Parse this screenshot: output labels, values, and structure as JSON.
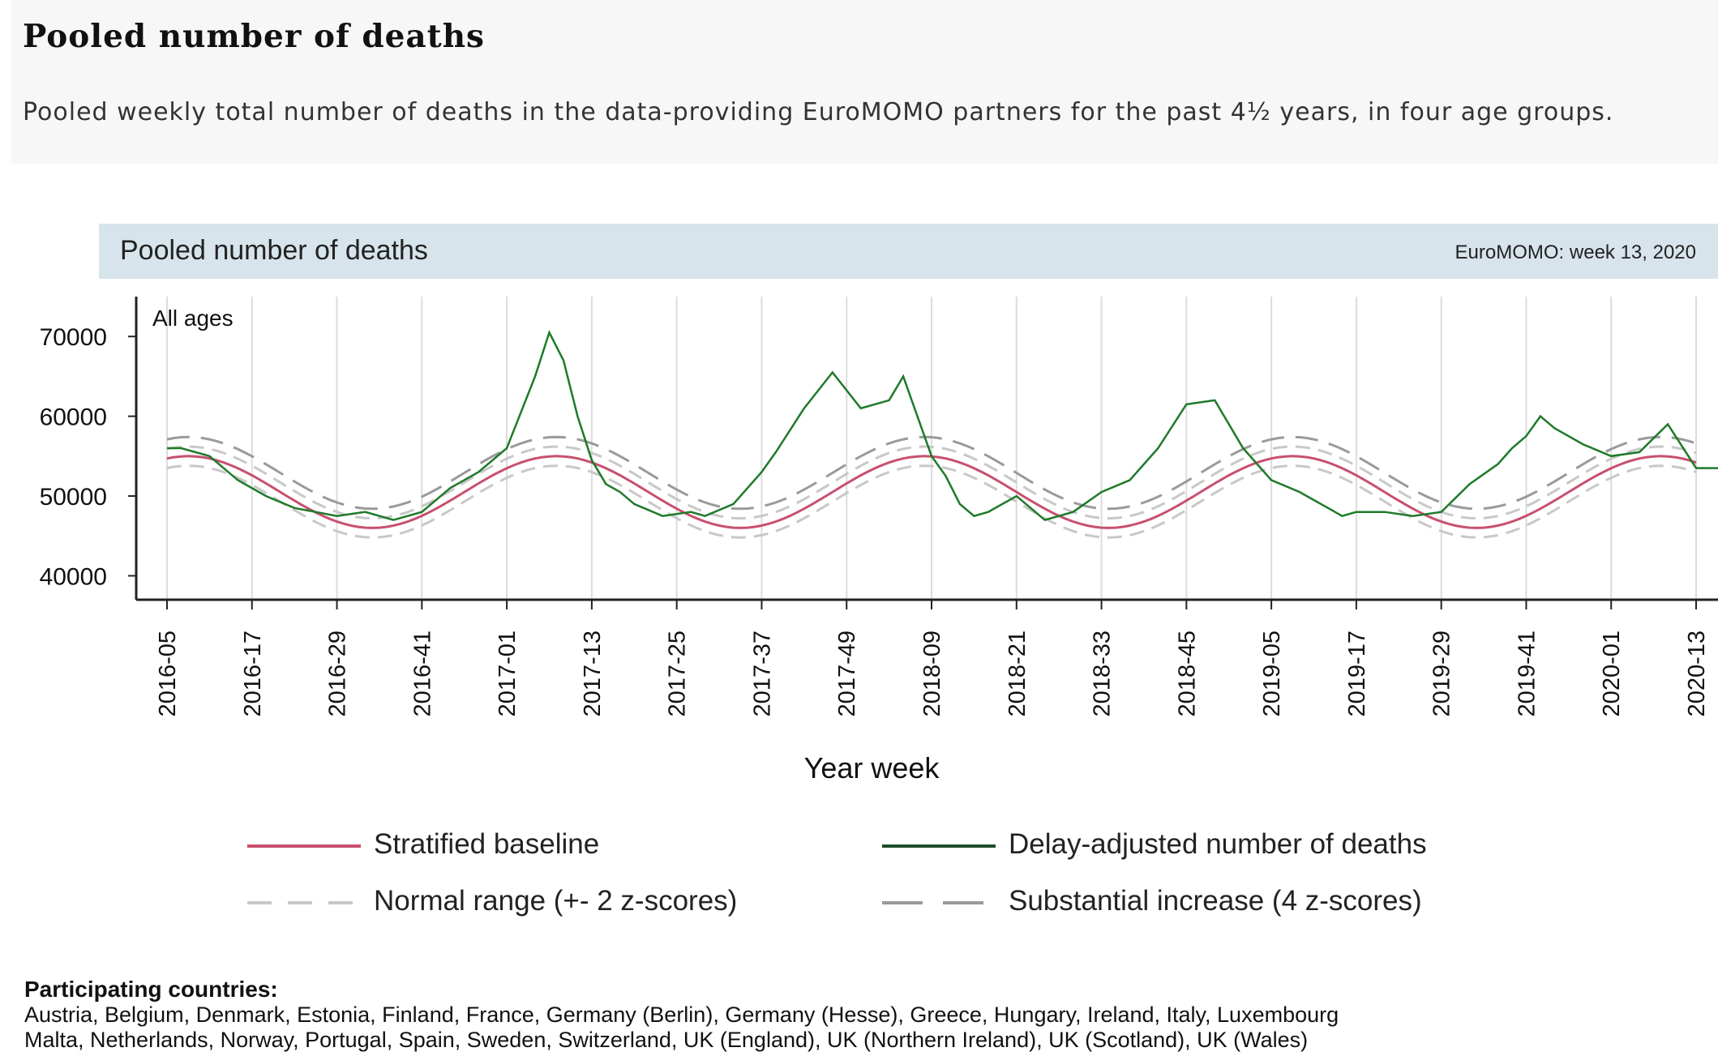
{
  "page": {
    "title": "Pooled number of deaths",
    "description": "Pooled weekly total number of deaths in the data-providing EuroMOMO partners for the past 4½ years, in four age groups."
  },
  "chart_header": {
    "title": "Pooled number of deaths",
    "meta": "EuroMOMO: week 13, 2020"
  },
  "legend": [
    {
      "label": "Stratified baseline",
      "color": "#c8506e",
      "style": "solid"
    },
    {
      "label": "Delay-adjusted number of deaths",
      "color": "#1f7a2a",
      "style": "solid"
    },
    {
      "label": "Normal range (+- 2 z-scores)",
      "color": "#c8c8c8",
      "style": "dashed"
    },
    {
      "label": "Substantial increase (4 z-scores)",
      "color": "#9a9a9a",
      "style": "dashed"
    }
  ],
  "countries": {
    "title": "Participating countries:",
    "line1": "Austria, Belgium, Denmark, Estonia, Finland, France, Germany (Berlin), Germany (Hesse), Greece, Hungary, Ireland, Italy, Luxembourg",
    "line2": "Malta, Netherlands, Norway, Portugal, Spain, Sweden, Switzerland, UK (England), UK (Northern Ireland), UK (Scotland), UK (Wales)"
  },
  "chart_data": {
    "type": "line",
    "panel_label": "All ages",
    "xlabel": "Year week",
    "ylabel": "",
    "ylim": [
      37000,
      75000
    ],
    "y_ticks": [
      40000,
      50000,
      60000,
      70000
    ],
    "x_ticks": [
      "2016-05",
      "2016-17",
      "2016-29",
      "2016-41",
      "2017-01",
      "2017-13",
      "2017-25",
      "2017-37",
      "2017-49",
      "2018-09",
      "2018-21",
      "2018-33",
      "2018-45",
      "2019-05",
      "2019-17",
      "2019-29",
      "2019-41",
      "2020-01",
      "2020-13"
    ],
    "grid": "vertical",
    "colors": {
      "baseline": "#c8506e",
      "observed": "#1f7a2a",
      "normal": "#c8c8c8",
      "substantial": "#9a9a9a"
    },
    "series": [
      {
        "key": "observed",
        "name": "Delay-adjusted number of deaths",
        "color": "#1f7a2a",
        "x": [
          0,
          2,
          6,
          10,
          14,
          18,
          24,
          28,
          32,
          36,
          40,
          44,
          48,
          52,
          54,
          56,
          58,
          60,
          62,
          64,
          66,
          70,
          74,
          76,
          80,
          82,
          84,
          86,
          90,
          94,
          98,
          102,
          104,
          106,
          108,
          110,
          112,
          114,
          116,
          118,
          120,
          124,
          128,
          132,
          136,
          140,
          144,
          148,
          152,
          156,
          160,
          162,
          164,
          166,
          168,
          172,
          176,
          180,
          184,
          188,
          190,
          192,
          194,
          196,
          200,
          204,
          208,
          212,
          216,
          218,
          220,
          222,
          224,
          226,
          228,
          230,
          232,
          234,
          236
        ],
        "y": [
          56000,
          56000,
          55000,
          52000,
          50000,
          48500,
          47500,
          48000,
          47000,
          48000,
          51000,
          53000,
          56000,
          65000,
          70500,
          67000,
          60000,
          54500,
          51500,
          50500,
          49000,
          47500,
          48000,
          47500,
          49000,
          51000,
          53000,
          55500,
          61000,
          65500,
          61000,
          62000,
          65000,
          60000,
          55000,
          52500,
          49000,
          47500,
          48000,
          49000,
          50000,
          47000,
          48000,
          50500,
          52000,
          56000,
          61500,
          62000,
          56000,
          52000,
          50500,
          49500,
          48500,
          47500,
          48000,
          48000,
          47500,
          48000,
          51500,
          54000,
          56000,
          57500,
          60000,
          58500,
          56500,
          55000,
          55500,
          59000,
          53500,
          53500,
          53500,
          53500,
          53500,
          53500,
          53500,
          53500,
          53500,
          53500,
          53500
        ]
      },
      {
        "key": "baseline",
        "name": "Stratified baseline",
        "color": "#c8506e",
        "baseline": {
          "mean": 50500,
          "amp": 4500
        }
      },
      {
        "key": "normal_upper",
        "name": "Normal range (+- 2 z-scores)",
        "color": "#c8c8c8",
        "offset": 1200
      },
      {
        "key": "normal_lower",
        "name": "Normal range (+- 2 z-scores)",
        "color": "#c8c8c8",
        "offset": -1200
      },
      {
        "key": "substantial",
        "name": "Substantial increase (4 z-scores)",
        "color": "#9a9a9a",
        "offset": 2400
      }
    ]
  }
}
